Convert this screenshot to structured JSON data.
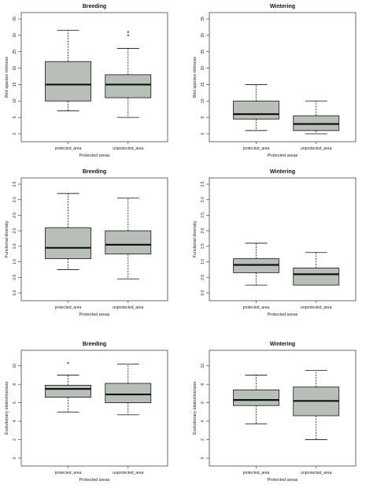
{
  "chart_data": [
    {
      "type": "box",
      "title": "Breeding",
      "xlabel": "Protected areas",
      "ylabel": "Bird species richness",
      "categories": [
        "protected_area",
        "unprotected_area"
      ],
      "ylim": [
        0,
        35
      ],
      "yticks": [
        "0",
        "5",
        "10",
        "15",
        "20",
        "25",
        "30",
        "35"
      ],
      "boxes": [
        {
          "whisker_low": 7,
          "q1": 10,
          "median": 15,
          "q3": 22,
          "whisker_high": 31.5,
          "outliers": []
        },
        {
          "whisker_low": 5,
          "q1": 11,
          "median": 15,
          "q3": 18,
          "whisker_high": 26,
          "outliers": [
            30,
            31
          ]
        }
      ]
    },
    {
      "type": "box",
      "title": "Wintering",
      "xlabel": "Protected areas",
      "ylabel": "Bird species richness",
      "categories": [
        "protected_area",
        "unprotected_area"
      ],
      "ylim": [
        0,
        35
      ],
      "yticks": [
        "0",
        "5",
        "10",
        "15",
        "20",
        "25",
        "30",
        "35"
      ],
      "boxes": [
        {
          "whisker_low": 1,
          "q1": 4.5,
          "median": 6,
          "q3": 10,
          "whisker_high": 15,
          "outliers": []
        },
        {
          "whisker_low": 0,
          "q1": 1,
          "median": 3,
          "q3": 5.5,
          "whisker_high": 10,
          "outliers": []
        }
      ]
    },
    {
      "type": "box",
      "title": "Breeding",
      "xlabel": "Protected areas",
      "ylabel": "Functional diversity",
      "categories": [
        "protected_area",
        "unprotected_area"
      ],
      "ylim": [
        0,
        3.5
      ],
      "yticks": [
        "0.0",
        "0.5",
        "1.0",
        "1.5",
        "2.0",
        "2.5",
        "3.0",
        "3.5"
      ],
      "boxes": [
        {
          "whisker_low": 0.75,
          "q1": 1.1,
          "median": 1.45,
          "q3": 2.1,
          "whisker_high": 3.2,
          "outliers": []
        },
        {
          "whisker_low": 0.45,
          "q1": 1.25,
          "median": 1.55,
          "q3": 2.0,
          "whisker_high": 3.05,
          "outliers": []
        }
      ]
    },
    {
      "type": "box",
      "title": "Wintering",
      "xlabel": "Protected areas",
      "ylabel": "Functional diversity",
      "categories": [
        "protected_area",
        "unprotected_area"
      ],
      "ylim": [
        0,
        3.5
      ],
      "yticks": [
        "0.0",
        "0.5",
        "1.0",
        "1.5",
        "2.0",
        "2.5",
        "3.0",
        "3.5"
      ],
      "boxes": [
        {
          "whisker_low": 0.25,
          "q1": 0.65,
          "median": 0.9,
          "q3": 1.1,
          "whisker_high": 1.6,
          "outliers": []
        },
        {
          "whisker_low": 0.25,
          "q1": 0.25,
          "median": 0.6,
          "q3": 0.8,
          "whisker_high": 1.3,
          "outliers": []
        }
      ]
    },
    {
      "type": "box",
      "title": "Breeding",
      "xlabel": "Protected areas",
      "ylabel": "Evolutionary distinctiveness",
      "categories": [
        "protected_area",
        "unprotected_area"
      ],
      "ylim": [
        0,
        11
      ],
      "yticks": [
        "0",
        "2",
        "4",
        "6",
        "8",
        "10"
      ],
      "boxes": [
        {
          "whisker_low": 5,
          "q1": 6.6,
          "median": 7.5,
          "q3": 7.9,
          "whisker_high": 9,
          "outliers": [
            10.3
          ]
        },
        {
          "whisker_low": 4.7,
          "q1": 6.0,
          "median": 6.9,
          "q3": 8.1,
          "whisker_high": 10.2,
          "outliers": []
        }
      ]
    },
    {
      "type": "box",
      "title": "Wintering",
      "xlabel": "Protected areas",
      "ylabel": "Evolutionary distinctiveness",
      "categories": [
        "protected_area",
        "unprotected_area"
      ],
      "ylim": [
        0,
        11
      ],
      "yticks": [
        "0",
        "2",
        "4",
        "6",
        "8",
        "10"
      ],
      "boxes": [
        {
          "whisker_low": 3.7,
          "q1": 5.7,
          "median": 6.3,
          "q3": 7.4,
          "whisker_high": 9,
          "outliers": []
        },
        {
          "whisker_low": 2,
          "q1": 4.6,
          "median": 6.2,
          "q3": 7.7,
          "whisker_high": 9.5,
          "outliers": []
        }
      ]
    }
  ],
  "style": {
    "box_fill": "#b8bfb8",
    "line_color": "#111111",
    "frame_color": "#444444"
  }
}
